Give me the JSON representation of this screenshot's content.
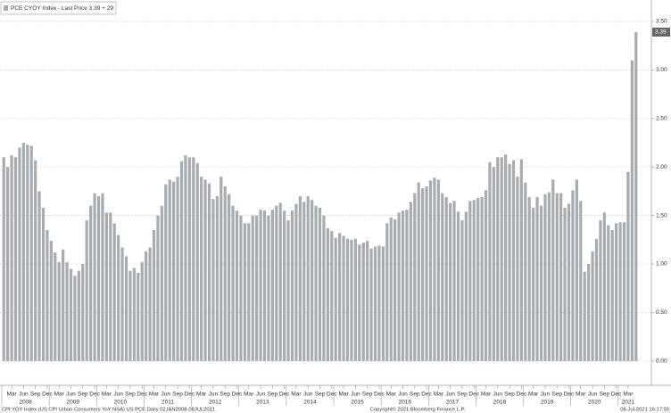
{
  "chart_data": {
    "type": "bar",
    "legend": "PCE CYOY Index - Last Price 3.39 +.29",
    "footer_left": "CPI YOY Index (US CPI Urban Consumers YoY NSA) US PCE  Daily 02JAN2008-08JUL2021",
    "footer_center": "Copyright© 2021 Bloomberg Finance L.P.",
    "footer_right": "08-Jul-2021 16:17:55",
    "color": "#a7acb1",
    "grid": true,
    "years": [
      "2008",
      "2009",
      "2010",
      "2011",
      "2012",
      "2013",
      "2014",
      "2015",
      "2016",
      "2017",
      "2018",
      "2019",
      "2020",
      "2021"
    ],
    "categories": [
      null,
      null,
      "Mar",
      null,
      null,
      "Jun",
      null,
      null,
      "Sep",
      null,
      null,
      "Dec",
      null,
      null,
      "Mar",
      null,
      null,
      "Jun",
      null,
      null,
      "Sep",
      null,
      null,
      "Dec",
      null,
      null,
      "Mar",
      null,
      null,
      "Jun",
      null,
      null,
      "Sep",
      null,
      null,
      "Dec",
      null,
      null,
      "Mar",
      null,
      null,
      "Jun",
      null,
      null,
      "Sep",
      null,
      null,
      "Dec",
      null,
      null,
      "Mar",
      null,
      null,
      "Jun",
      null,
      null,
      "Sep",
      null,
      null,
      "Dec",
      null,
      null,
      "Mar",
      null,
      null,
      "Jun",
      null,
      null,
      "Sep",
      null,
      null,
      "Dec",
      null,
      null,
      "Mar",
      null,
      null,
      "Jun",
      null,
      null,
      "Sep",
      null,
      null,
      "Dec",
      null,
      null,
      "Mar",
      null,
      null,
      "Jun",
      null,
      null,
      "Sep",
      null,
      null,
      "Dec",
      null,
      null,
      "Mar",
      null,
      null,
      "Jun",
      null,
      null,
      "Sep",
      null,
      null,
      "Dec",
      null,
      null,
      "Mar",
      null,
      null,
      "Jun",
      null,
      null,
      "Sep",
      null,
      null,
      "Dec",
      null,
      null,
      "Mar",
      null,
      null,
      "Jun",
      null,
      null,
      "Sep",
      null,
      null,
      "Dec",
      null,
      null,
      "Mar",
      null,
      null,
      "Jun",
      null,
      null,
      "Sep",
      null,
      null,
      "Dec",
      null,
      null,
      "Mar",
      null,
      null,
      "Jun",
      null,
      null,
      "Sep",
      null,
      null,
      "Dec",
      null,
      null,
      "Mar",
      null,
      null
    ],
    "values": [
      2.1,
      2.0,
      2.12,
      2.1,
      2.2,
      2.25,
      2.23,
      2.22,
      2.07,
      1.75,
      1.58,
      1.35,
      1.24,
      1.12,
      1.02,
      1.15,
      1.02,
      0.95,
      0.88,
      0.93,
      1.0,
      1.45,
      1.6,
      1.73,
      1.7,
      1.73,
      1.53,
      1.53,
      1.42,
      1.3,
      1.17,
      1.08,
      0.93,
      0.96,
      0.91,
      1.02,
      1.13,
      1.17,
      1.35,
      1.5,
      1.6,
      1.82,
      1.87,
      1.85,
      1.9,
      2.06,
      2.12,
      2.1,
      2.1,
      2.04,
      1.9,
      1.87,
      1.83,
      1.67,
      1.7,
      1.9,
      1.8,
      1.72,
      1.6,
      1.55,
      1.5,
      1.42,
      1.42,
      1.5,
      1.5,
      1.56,
      1.55,
      1.5,
      1.56,
      1.6,
      1.63,
      1.55,
      1.45,
      1.55,
      1.62,
      1.7,
      1.64,
      1.7,
      1.66,
      1.6,
      1.58,
      1.5,
      1.37,
      1.34,
      1.27,
      1.32,
      1.29,
      1.26,
      1.25,
      1.26,
      1.2,
      1.22,
      1.24,
      1.16,
      1.18,
      1.19,
      1.18,
      1.42,
      1.48,
      1.46,
      1.53,
      1.55,
      1.56,
      1.64,
      1.73,
      1.84,
      1.78,
      1.8,
      1.86,
      1.89,
      1.87,
      1.73,
      1.69,
      1.63,
      1.65,
      1.54,
      1.45,
      1.54,
      1.65,
      1.66,
      1.68,
      1.69,
      1.76,
      2.05,
      2.0,
      2.1,
      2.1,
      2.13,
      2.03,
      2.07,
      1.9,
      2.08,
      1.84,
      1.69,
      1.58,
      1.69,
      1.6,
      1.72,
      1.74,
      1.87,
      1.73,
      1.73,
      1.58,
      1.62,
      1.76,
      1.87,
      1.65,
      0.92,
      1.0,
      1.13,
      1.26,
      1.45,
      1.53,
      1.4,
      1.35,
      1.42,
      1.43,
      1.43,
      1.95,
      3.1,
      3.39
    ],
    "ylim": [
      -0.25,
      3.65
    ],
    "yticks": [
      {
        "value": 0,
        "label": "0.00"
      },
      {
        "value": 0.5,
        "label": "0.50"
      },
      {
        "value": 1,
        "label": "1.00"
      },
      {
        "value": 1.5,
        "label": "1.50"
      },
      {
        "value": 2,
        "label": "2.00"
      },
      {
        "value": 2.5,
        "label": "2.50"
      },
      {
        "value": 3,
        "label": "3.00"
      },
      {
        "value": 3.5,
        "label": "3.50"
      }
    ]
  }
}
